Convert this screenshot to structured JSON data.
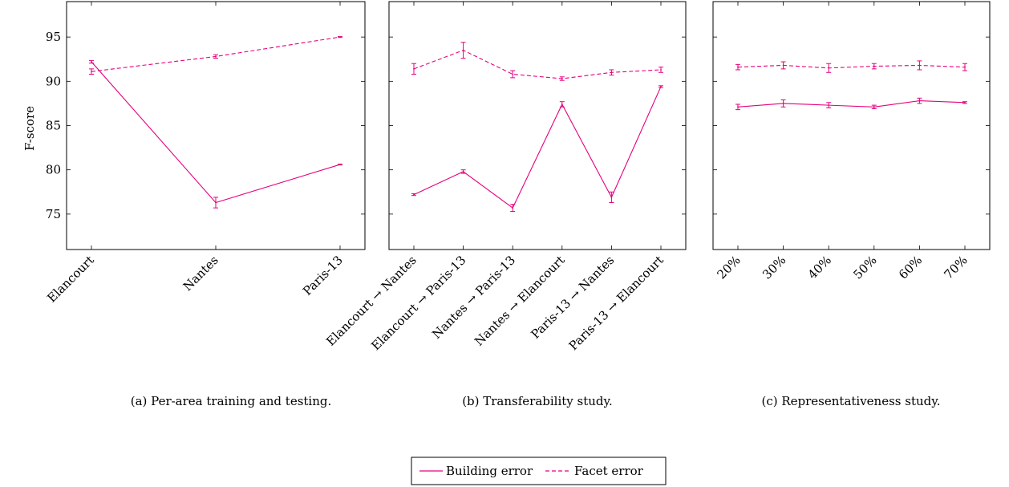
{
  "figure": {
    "ylabel": "F-score",
    "legend": {
      "placement": "bottom-center",
      "entries": [
        {
          "label": "Building error",
          "style": "solid"
        },
        {
          "label": "Facet error",
          "style": "dashed"
        }
      ]
    },
    "series_color": "#e6007e"
  },
  "chart_data": [
    {
      "type": "line",
      "caption": "(a) Per-area training and testing.",
      "ylabel": "F-score",
      "ylim": [
        71,
        99
      ],
      "yticks": [
        75,
        80,
        85,
        90,
        95
      ],
      "categories": [
        "Elancourt",
        "Nantes",
        "Paris-13"
      ],
      "series": [
        {
          "name": "Building error",
          "style": "solid",
          "values": [
            92.2,
            76.3,
            80.6
          ],
          "errors": [
            0.15,
            0.6,
            0.05
          ]
        },
        {
          "name": "Facet error",
          "style": "dashed",
          "values": [
            91.1,
            92.8,
            95.0
          ],
          "errors": [
            0.3,
            0.2,
            0.05
          ]
        }
      ]
    },
    {
      "type": "line",
      "caption": "(b) Transferability study.",
      "ylabel": "",
      "ylim": [
        71,
        99
      ],
      "yticks": [
        75,
        80,
        85,
        90,
        95
      ],
      "categories": [
        "Elancourt → Nantes",
        "Elancourt → Paris-13",
        "Nantes → Paris-13",
        "Nantes → Elancourt",
        "Paris-13 → Nantes",
        "Paris-13 → Elancourt"
      ],
      "series": [
        {
          "name": "Building error",
          "style": "solid",
          "values": [
            77.2,
            79.8,
            75.7,
            87.4,
            76.9,
            89.4
          ],
          "errors": [
            0.1,
            0.2,
            0.4,
            0.3,
            0.6,
            0.1
          ]
        },
        {
          "name": "Facet error",
          "style": "dashed",
          "values": [
            91.4,
            93.5,
            90.8,
            90.3,
            91.0,
            91.3
          ],
          "errors": [
            0.6,
            0.9,
            0.4,
            0.2,
            0.3,
            0.3
          ]
        }
      ]
    },
    {
      "type": "line",
      "caption": "(c) Representativeness study.",
      "ylabel": "",
      "ylim": [
        71,
        99
      ],
      "yticks": [
        75,
        80,
        85,
        90,
        95
      ],
      "categories": [
        "20%",
        "30%",
        "40%",
        "50%",
        "60%",
        "70%"
      ],
      "series": [
        {
          "name": "Building error",
          "style": "solid",
          "values": [
            87.1,
            87.5,
            87.3,
            87.1,
            87.8,
            87.6
          ],
          "errors": [
            0.3,
            0.4,
            0.3,
            0.2,
            0.3,
            0.1
          ]
        },
        {
          "name": "Facet error",
          "style": "dashed",
          "values": [
            91.6,
            91.8,
            91.5,
            91.7,
            91.8,
            91.6
          ],
          "errors": [
            0.3,
            0.4,
            0.5,
            0.3,
            0.5,
            0.4
          ]
        }
      ]
    }
  ]
}
